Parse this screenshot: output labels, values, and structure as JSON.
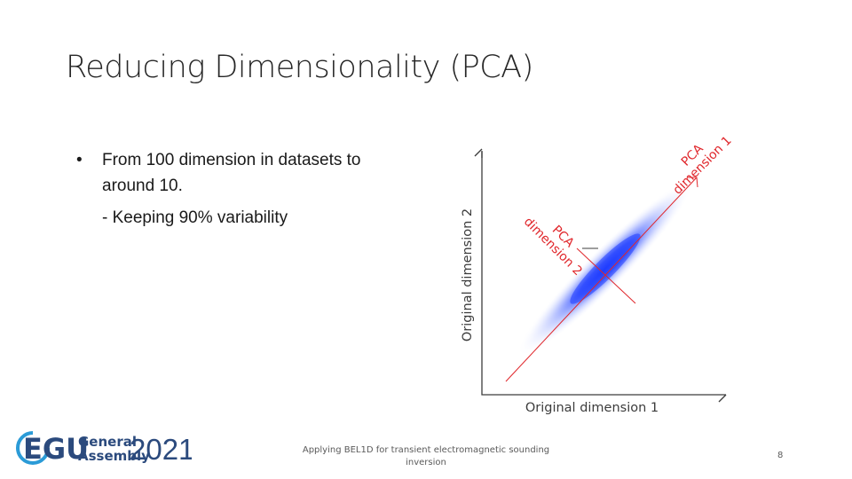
{
  "slide": {
    "title": "Reducing Dimensionality (PCA)",
    "bullets": [
      {
        "marker": "•",
        "text": "From 100 dimension in datasets to around 10.",
        "sub": "- Keeping 90% variability"
      }
    ]
  },
  "figure": {
    "xlabel": "Original dimension 1",
    "ylabel": "Original dimension 2",
    "pca1_label_line1": "PCA",
    "pca1_label_line2": "dimension 1",
    "pca2_label_line1": "PCA",
    "pca2_label_line2": "dimension 2",
    "colors": {
      "cloud": "#1f3cff",
      "pca_axes": "#e0262b",
      "axes": "#3c3c3c"
    }
  },
  "footer": {
    "logo": {
      "letters": "EGU",
      "line1": "General",
      "line2": "Assembly",
      "year": "2021"
    },
    "caption": "Applying BEL1D for transient electromagnetic sounding inversion",
    "page_number": "8"
  }
}
